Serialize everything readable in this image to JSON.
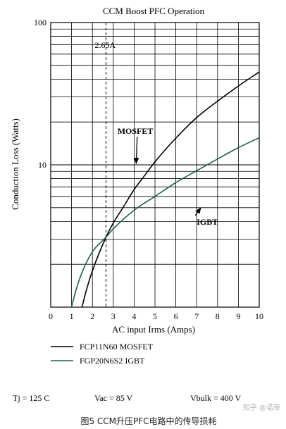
{
  "chart_data": {
    "type": "line",
    "title": "CCM Boost PFC Operation",
    "xlabel": "AC input Irms (Amps)",
    "ylabel": "Conduction Loss (Watts)",
    "xlim": [
      0,
      10
    ],
    "ylim": [
      1,
      100
    ],
    "yscale": "log",
    "grid": true,
    "x_ticks": [
      "0",
      "1",
      "2",
      "3",
      "4",
      "5",
      "6",
      "7",
      "8",
      "9",
      "10"
    ],
    "y_ticks": [
      {
        "value": 100,
        "label": "100"
      },
      {
        "value": 10,
        "label": "10"
      }
    ],
    "series": [
      {
        "name": "FCP11N60 MOSFET",
        "color": "#000000",
        "points": [
          [
            1.5,
            1.0
          ],
          [
            1.7,
            1.3
          ],
          [
            2.0,
            1.8
          ],
          [
            2.65,
            3.1
          ],
          [
            3.0,
            3.9
          ],
          [
            3.5,
            5.1
          ],
          [
            4.0,
            6.7
          ],
          [
            4.5,
            8.4
          ],
          [
            5.0,
            10.5
          ],
          [
            6.0,
            15.4
          ],
          [
            7.0,
            21.5
          ],
          [
            8.0,
            28.0
          ],
          [
            9.0,
            35.8
          ],
          [
            10.0,
            45.0
          ]
        ]
      },
      {
        "name": "FGP20N6S2 IGBT",
        "color": "#1f5f4a",
        "points": [
          [
            1.0,
            1.0
          ],
          [
            1.2,
            1.3
          ],
          [
            1.5,
            1.75
          ],
          [
            2.0,
            2.45
          ],
          [
            2.65,
            3.1
          ],
          [
            3.0,
            3.55
          ],
          [
            4.0,
            4.8
          ],
          [
            5.0,
            6.0
          ],
          [
            6.0,
            7.5
          ],
          [
            7.0,
            9.1
          ],
          [
            8.0,
            11.0
          ],
          [
            9.0,
            13.2
          ],
          [
            10.0,
            15.5
          ]
        ]
      }
    ],
    "annotations": [
      {
        "text": "2.65A",
        "kind": "vline",
        "x": 2.65
      },
      {
        "text": "MOSFET",
        "kind": "arrow-label",
        "label_at": [
          3.2,
          16.5
        ],
        "points_to": [
          4.1,
          10.2
        ]
      },
      {
        "text": "IGBT",
        "kind": "arrow-label",
        "label_at": [
          7.0,
          3.8
        ],
        "points_to": [
          7.2,
          5.0
        ]
      }
    ],
    "legend": {
      "placement": "below-chart",
      "entries": [
        "FCP11N60 MOSFET",
        "FGP20N6S2 IGBT"
      ]
    },
    "conditions": {
      "tj": "Tj = 125 C",
      "vac": "Vac = 85 V",
      "vbulk": "Vbulk = 400 V"
    },
    "caption": "图5 CCM升压PFC电路中的传导损耗",
    "watermark": "知乎 @诺帝"
  }
}
